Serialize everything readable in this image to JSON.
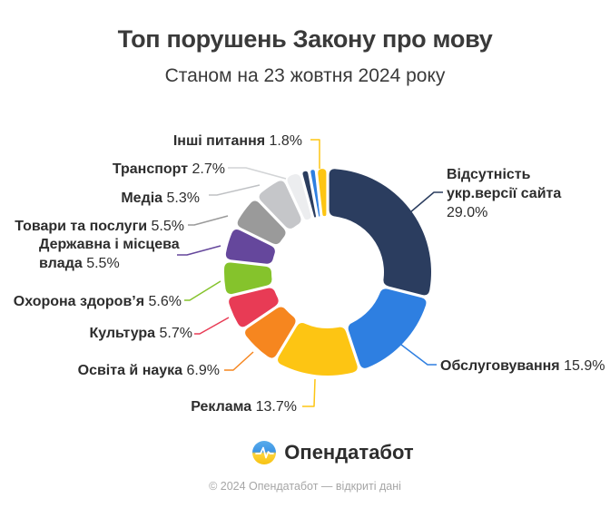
{
  "header": {
    "title": "Топ порушень Закону про мову",
    "subtitle": "Станом на 23 жовтня 2024 року"
  },
  "chart_data": {
    "type": "pie",
    "variant": "donut",
    "unit": "%",
    "start_angle_deg": 0,
    "direction": "clockwise",
    "legend_position": "callout-labels",
    "slices": [
      {
        "id": "website",
        "label": "Відсутність укр.версії сайта",
        "value": 29.0,
        "pct": "29.0%",
        "color": "#2B3D5F"
      },
      {
        "id": "service",
        "label": "Обслуговування",
        "value": 15.9,
        "pct": "15.9%",
        "color": "#2E7FE1"
      },
      {
        "id": "advertising",
        "label": "Реклама",
        "value": 13.7,
        "pct": "13.7%",
        "color": "#FDC513"
      },
      {
        "id": "education",
        "label": "Освіта й наука",
        "value": 6.9,
        "pct": "6.9%",
        "color": "#F6861F"
      },
      {
        "id": "culture",
        "label": "Культура",
        "value": 5.7,
        "pct": "5.7%",
        "color": "#E83B55"
      },
      {
        "id": "healthcare",
        "label": "Охорона здоров’я",
        "value": 5.6,
        "pct": "5.6%",
        "color": "#85C32C"
      },
      {
        "id": "government",
        "label": "Державна і місцева влада",
        "value": 5.5,
        "pct": "5.5%",
        "color": "#65479C"
      },
      {
        "id": "goods",
        "label": "Товари та послуги",
        "value": 5.5,
        "pct": "5.5%",
        "color": "#9A9A9A"
      },
      {
        "id": "media",
        "label": "Медіа",
        "value": 5.3,
        "pct": "5.3%",
        "color": "#C5C6C9"
      },
      {
        "id": "transport",
        "label": "Транспорт",
        "value": 2.7,
        "pct": "2.7%",
        "color": "#ECEDEF"
      },
      {
        "id": "minor-navy",
        "label": "",
        "value": 1.3,
        "pct": "",
        "color": "#2B3D5F"
      },
      {
        "id": "minor-blue",
        "label": "",
        "value": 1.1,
        "pct": "",
        "color": "#2E7FE1"
      },
      {
        "id": "other",
        "label": "Інші питання",
        "value": 1.8,
        "pct": "1.8%",
        "color": "#FDC513"
      }
    ]
  },
  "footer": {
    "brand": "Опендатабот",
    "copyright": "© 2024 Опендатабот — відкриті дані"
  }
}
